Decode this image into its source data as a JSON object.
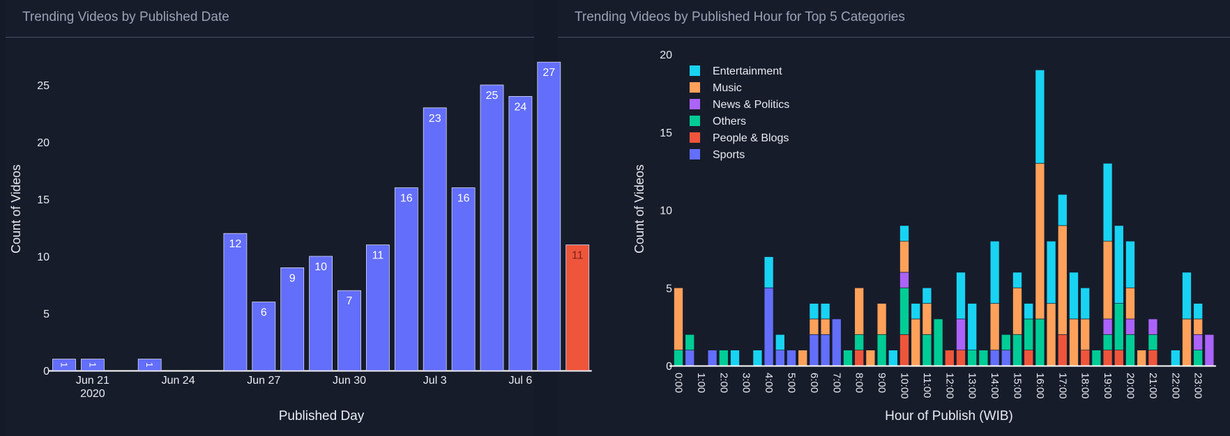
{
  "panels": {
    "left_title": "Trending Videos by Published Date",
    "right_title": "Trending Videos by Published Hour for Top 5 Categories"
  },
  "colors": {
    "bar_default": "#636efa",
    "bar_highlight": "#ef553b",
    "Entertainment": "#19d3f3",
    "Music": "#ffa15a",
    "News & Politics": "#ab63fa",
    "Others": "#00cc96",
    "People & Blogs": "#ef553b",
    "Sports": "#636efa"
  },
  "chart_data": [
    {
      "type": "bar",
      "title": "Trending Videos by Published Date",
      "xlabel": "Published Day",
      "ylabel": "Count of Videos",
      "ylim": [
        0,
        28.5
      ],
      "yticks": [
        0,
        5,
        10,
        15,
        20,
        25
      ],
      "xticks": [
        {
          "day": 1,
          "label": "Jun 21",
          "sublabel": "2020"
        },
        {
          "day": 4,
          "label": "Jun 24"
        },
        {
          "day": 7,
          "label": "Jun 27"
        },
        {
          "day": 10,
          "label": "Jun 30"
        },
        {
          "day": 13,
          "label": "Jul 3"
        },
        {
          "day": 16,
          "label": "Jul 6"
        }
      ],
      "x_start": "2020-06-20",
      "x_end": "2020-07-08",
      "bars": [
        {
          "date": "2020-06-20",
          "value": 1
        },
        {
          "date": "2020-06-21",
          "value": 1
        },
        {
          "date": "2020-06-23",
          "value": 1
        },
        {
          "date": "2020-06-26",
          "value": 12
        },
        {
          "date": "2020-06-27",
          "value": 6
        },
        {
          "date": "2020-06-28",
          "value": 9
        },
        {
          "date": "2020-06-29",
          "value": 10
        },
        {
          "date": "2020-06-30",
          "value": 7
        },
        {
          "date": "2020-07-01",
          "value": 11
        },
        {
          "date": "2020-07-02",
          "value": 16
        },
        {
          "date": "2020-07-03",
          "value": 23
        },
        {
          "date": "2020-07-04",
          "value": 16
        },
        {
          "date": "2020-07-05",
          "value": 25
        },
        {
          "date": "2020-07-06",
          "value": 24
        },
        {
          "date": "2020-07-07",
          "value": 27
        },
        {
          "date": "2020-07-08",
          "value": 11,
          "highlight": true
        }
      ],
      "grid": false
    },
    {
      "type": "bar",
      "stacked": true,
      "title": "Trending Videos by Published Hour for Top 5 Categories",
      "xlabel": "Hour of Publish (WIB)",
      "ylabel": "Count of Videos",
      "ylim": [
        0,
        20
      ],
      "yticks": [
        0,
        5,
        10,
        15,
        20
      ],
      "legend": "top-left",
      "categories": [
        "0:00",
        "0:30",
        "1:00",
        "1:30",
        "2:00",
        "2:30",
        "3:00",
        "3:30",
        "4:00",
        "4:30",
        "5:00",
        "5:30",
        "6:00",
        "6:30",
        "7:00",
        "7:30",
        "8:00",
        "8:30",
        "9:00",
        "9:30",
        "10:00",
        "10:30",
        "11:00",
        "11:30",
        "12:00",
        "12:30",
        "13:00",
        "13:30",
        "14:00",
        "14:30",
        "15:00",
        "15:30",
        "16:00",
        "16:30",
        "17:00",
        "17:30",
        "18:00",
        "18:30",
        "19:00",
        "19:30",
        "20:00",
        "20:30",
        "21:00",
        "21:30",
        "22:00",
        "22:30",
        "23:00",
        "23:30"
      ],
      "xtick_labels": [
        "0:00",
        "1:00",
        "2:00",
        "3:00",
        "4:00",
        "5:00",
        "6:00",
        "7:00",
        "8:00",
        "9:00",
        "10:00",
        "11:00",
        "12:00",
        "13:00",
        "14:00",
        "15:00",
        "16:00",
        "17:00",
        "18:00",
        "19:00",
        "20:00",
        "21:00",
        "22:00",
        "23:00"
      ],
      "series": [
        {
          "name": "Sports",
          "values": [
            0,
            1,
            0,
            1,
            0,
            0,
            0,
            0,
            5,
            1,
            1,
            0,
            2,
            2,
            3,
            0,
            0,
            0,
            0,
            0,
            0,
            0,
            0,
            0,
            0,
            0,
            0,
            0,
            1,
            1,
            0,
            0,
            0,
            0,
            0,
            0,
            0,
            0,
            0,
            0,
            0,
            0,
            0,
            0,
            0,
            0,
            0,
            0
          ]
        },
        {
          "name": "People & Blogs",
          "values": [
            0,
            0,
            0,
            0,
            0,
            0,
            0,
            0,
            0,
            0,
            0,
            0,
            0,
            0,
            0,
            0,
            1,
            0,
            0,
            0,
            2,
            0,
            0,
            0,
            1,
            1,
            0,
            0,
            0,
            0,
            0,
            1,
            0,
            0,
            2,
            0,
            1,
            0,
            1,
            1,
            0,
            0,
            1,
            0,
            0,
            0,
            0,
            0
          ]
        },
        {
          "name": "Others",
          "values": [
            1,
            1,
            0,
            0,
            1,
            0,
            0,
            0,
            0,
            0,
            0,
            0,
            0,
            0,
            0,
            1,
            1,
            0,
            2,
            0,
            3,
            0,
            2,
            3,
            0,
            0,
            1,
            1,
            0,
            1,
            2,
            2,
            3,
            0,
            0,
            0,
            0,
            1,
            1,
            3,
            2,
            0,
            1,
            0,
            0,
            0,
            1,
            0
          ]
        },
        {
          "name": "News & Politics",
          "values": [
            0,
            0,
            0,
            0,
            0,
            0,
            0,
            0,
            0,
            0,
            0,
            0,
            0,
            0,
            0,
            0,
            0,
            0,
            0,
            0,
            1,
            0,
            0,
            0,
            0,
            2,
            0,
            0,
            0,
            0,
            0,
            0,
            0,
            0,
            0,
            0,
            0,
            0,
            1,
            0,
            1,
            0,
            1,
            0,
            0,
            0,
            1,
            2
          ]
        },
        {
          "name": "Music",
          "values": [
            4,
            0,
            0,
            0,
            0,
            0,
            0,
            0,
            0,
            0,
            0,
            1,
            1,
            1,
            0,
            0,
            3,
            1,
            2,
            0,
            2,
            3,
            2,
            0,
            0,
            0,
            0,
            0,
            3,
            0,
            3,
            0,
            10,
            4,
            7,
            3,
            2,
            0,
            5,
            0,
            2,
            1,
            0,
            0,
            0,
            3,
            1,
            0
          ]
        },
        {
          "name": "Entertainment",
          "values": [
            0,
            0,
            0,
            0,
            0,
            1,
            0,
            1,
            2,
            1,
            0,
            0,
            1,
            1,
            0,
            0,
            0,
            0,
            0,
            1,
            1,
            1,
            1,
            0,
            0,
            3,
            3,
            0,
            4,
            0,
            1,
            1,
            6,
            4,
            2,
            3,
            2,
            0,
            5,
            5,
            3,
            0,
            0,
            0,
            1,
            3,
            1,
            0
          ]
        }
      ],
      "legend_order": [
        "Entertainment",
        "Music",
        "News & Politics",
        "Others",
        "People & Blogs",
        "Sports"
      ],
      "grid": false
    }
  ]
}
